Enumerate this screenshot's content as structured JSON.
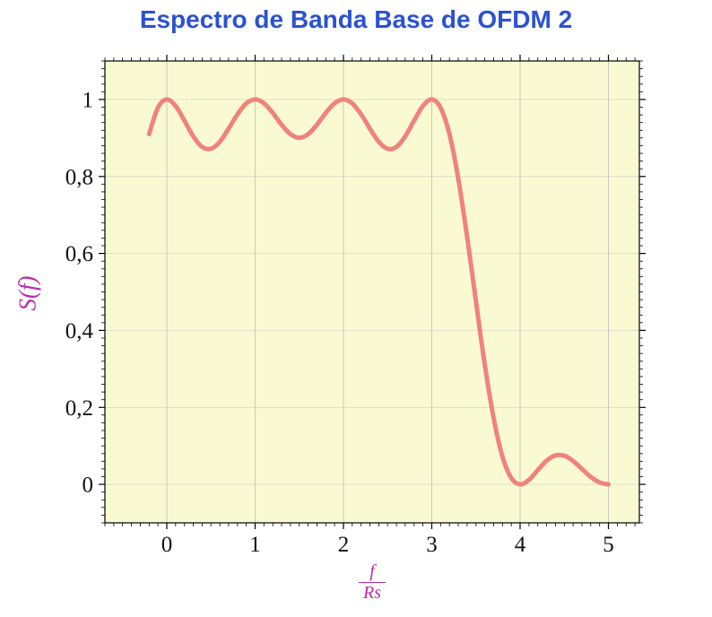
{
  "chart_data": {
    "type": "line",
    "title": "Espectro de Banda Base de OFDM 2",
    "ylabel": "S(f)",
    "xlabel_numerator": "f",
    "xlabel_denominator": "Rs",
    "xlim": [
      -0.7,
      5.35
    ],
    "ylim": [
      -0.1,
      1.1
    ],
    "grid": true,
    "legend": "none",
    "x": [
      -0.2,
      -0.1,
      0,
      0.1,
      0.2,
      0.3,
      0.4,
      0.5,
      0.6,
      0.7,
      0.8,
      0.9,
      1,
      1.1,
      1.2,
      1.3,
      1.4,
      1.5,
      1.6,
      1.7,
      1.8,
      1.9,
      2,
      2.1,
      2.2,
      2.3,
      2.4,
      2.5,
      2.6,
      2.7,
      2.8,
      2.9,
      3,
      3.1,
      3.2,
      3.3,
      3.4,
      3.5,
      3.6,
      3.7,
      3.8,
      3.9,
      4,
      4.1,
      4.2,
      4.3,
      4.4,
      4.5,
      4.6,
      4.7,
      4.8,
      4.9,
      5
    ],
    "y": [
      0.9101,
      0.9787,
      1,
      0.9833,
      0.9451,
      0.9042,
      0.8767,
      0.8718,
      0.89,
      0.924,
      0.9614,
      0.9897,
      1,
      0.9902,
      0.965,
      0.9344,
      0.9099,
      0.9006,
      0.9099,
      0.9344,
      0.965,
      0.9902,
      1,
      0.9897,
      0.9614,
      0.924,
      0.89,
      0.8718,
      0.8767,
      0.9042,
      0.9451,
      0.9833,
      1,
      0.9787,
      0.9101,
      0.7947,
      0.6434,
      0.4748,
      0.311,
      0.1722,
      0.0724,
      0.0164,
      0,
      0.0118,
      0.0369,
      0.0615,
      0.0753,
      0.0745,
      0.0608,
      0.0399,
      0.0192,
      0.0049,
      0
    ],
    "x_ticks": {
      "values": [
        0,
        1,
        2,
        3,
        4,
        5
      ],
      "labels": [
        "0",
        "1",
        "2",
        "3",
        "4",
        "5"
      ]
    },
    "y_ticks": {
      "values": [
        0,
        0.2,
        0.4,
        0.6,
        0.8,
        1
      ],
      "labels": [
        "0",
        "0,2",
        "0,4",
        "0,6",
        "0,8",
        "1"
      ]
    },
    "minor_tick_step_x": 0.1,
    "minor_tick_step_y": 0.02,
    "colors": {
      "title": "#2b52d2",
      "axis_label": "#b82cae",
      "curve": "#f0827c",
      "plot_bg": "#fafad2",
      "grid": "#c8c8c8",
      "axis": "#000000",
      "tick_label": "#111111"
    }
  }
}
